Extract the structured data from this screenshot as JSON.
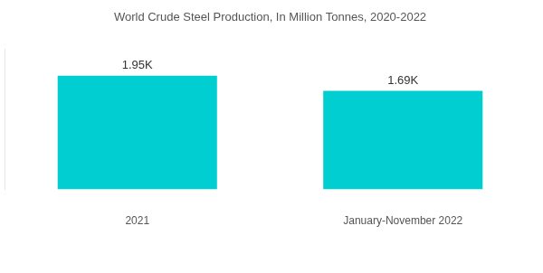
{
  "chart_data": {
    "type": "bar",
    "title": "World Crude Steel Production, In Million Tonnes, 2020-2022",
    "categories": [
      "2021",
      "January-November 2022"
    ],
    "values": [
      1950,
      1690
    ],
    "value_labels": [
      "1.95K",
      "1.69K"
    ],
    "color": "#00ced1",
    "ylim": [
      0,
      2400
    ],
    "grid": false,
    "data_labels": true,
    "tick_labels": "x"
  }
}
